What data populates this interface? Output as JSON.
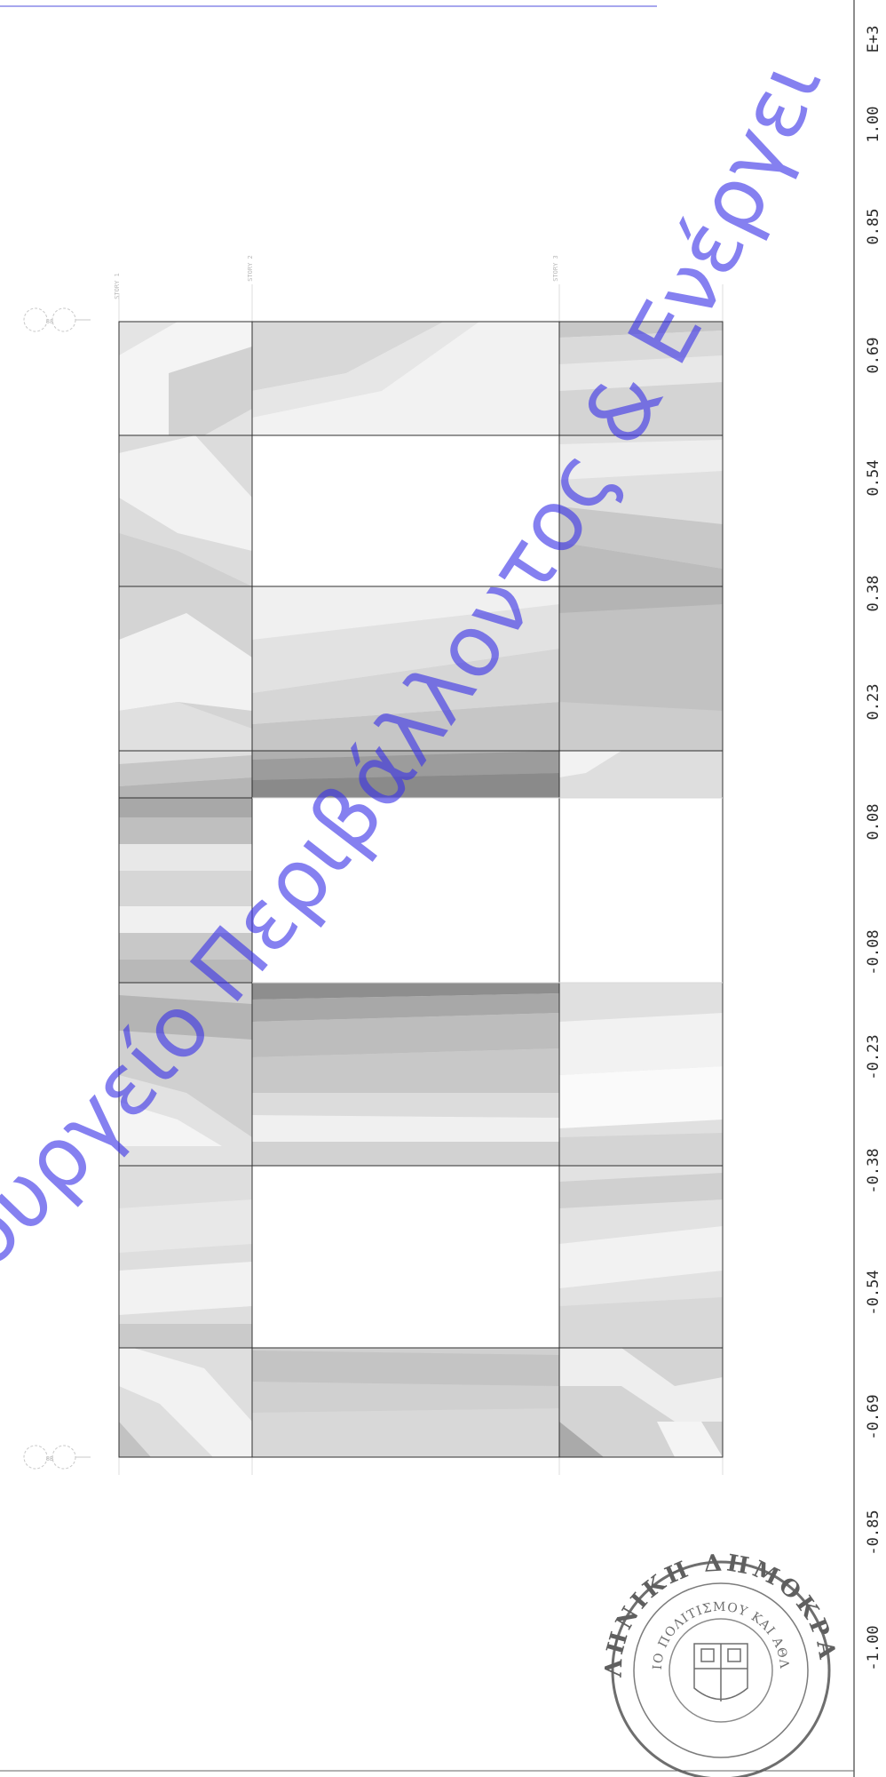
{
  "scale_bar": {
    "exponent": "E+3",
    "ticks": [
      "1.00",
      "0.85",
      "0.69",
      "0.54",
      "0.38",
      "0.23",
      "0.08",
      "-0.08",
      "-0.23",
      "-0.38",
      "-0.54",
      "-0.69",
      "-0.85",
      "-1.00"
    ]
  },
  "plot": {
    "top_symbol": "88",
    "bottom_symbol": "8B",
    "story_labels": [
      "STORY 1",
      "STORY 2",
      "STORY 3"
    ]
  },
  "watermark": {
    "text": "Υπουργείο Περιβάλλοντος & Ενέργειας",
    "color": "#3a32e6"
  },
  "seal": {
    "outer_text": "ΕΛΛΗΝΙΚΗ ΔΗΜΟΚΡΑΤΙΑ",
    "inner_text": "ΥΠΟΥΡΓΕΙΟ ΠΟΛΙΤΙΣΜΟΥ ΚΑΙ ΑΘΛΗΤΙΣΜΟΥ"
  }
}
